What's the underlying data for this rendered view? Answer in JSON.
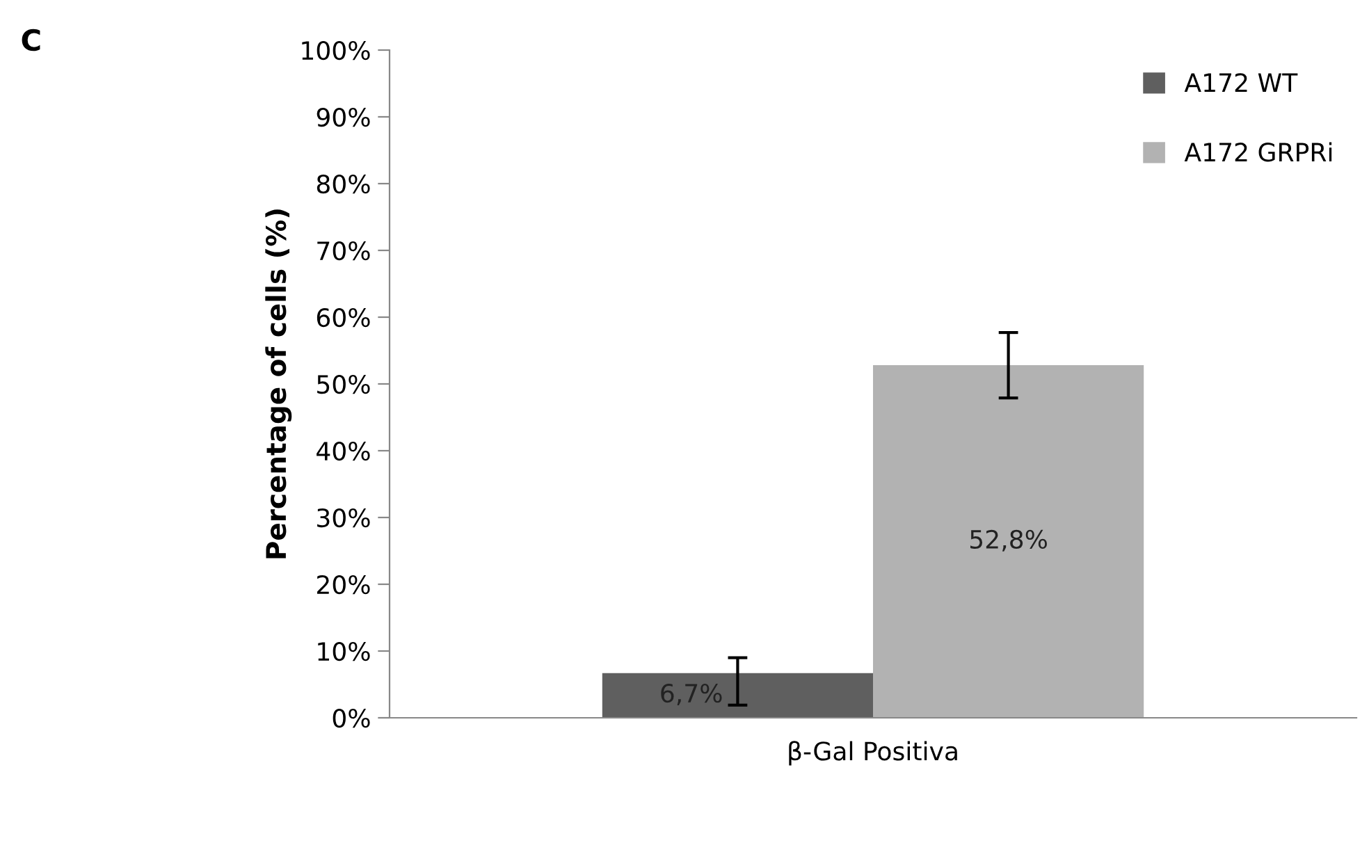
{
  "chart_data": {
    "type": "bar",
    "ylabel": "Percentage of cells (%)",
    "annotations": [
      "C"
    ],
    "categories": [
      "β-Gal Positiva"
    ],
    "series": [
      {
        "name": "A172 WT",
        "color": "#5f5f5f",
        "values": [
          6.7
        ],
        "errors": [
          [
            1.9,
            9.0
          ]
        ],
        "value_labels": [
          "6,7%"
        ]
      },
      {
        "name": "A172 GRPRi",
        "color": "#b2b2b2",
        "values": [
          52.8
        ],
        "errors": [
          [
            47.9,
            57.7
          ]
        ],
        "value_labels": [
          "52,8%"
        ]
      }
    ],
    "ylim": [
      0,
      100
    ],
    "yticks": [
      {
        "value": 0,
        "label": "0%"
      },
      {
        "value": 10,
        "label": "10%"
      },
      {
        "value": 20,
        "label": "20%"
      },
      {
        "value": 30,
        "label": "30%"
      },
      {
        "value": 40,
        "label": "40%"
      },
      {
        "value": 50,
        "label": "50%"
      },
      {
        "value": 60,
        "label": "60%"
      },
      {
        "value": 70,
        "label": "70%"
      },
      {
        "value": 80,
        "label": "80%"
      },
      {
        "value": 90,
        "label": "90%"
      },
      {
        "value": 100,
        "label": "100%"
      }
    ],
    "grid": false,
    "legend": "top right"
  }
}
